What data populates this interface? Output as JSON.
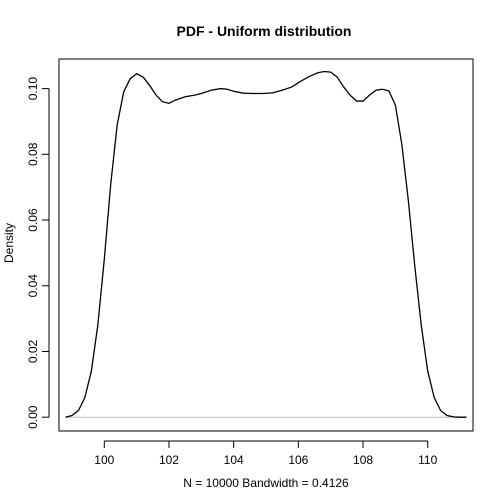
{
  "chart_data": {
    "type": "line",
    "title": "PDF - Uniform distribution",
    "xlabel": "N = 10000   Bandwidth = 0.4126",
    "ylabel": "Density",
    "xlim": [
      98.6,
      111.4
    ],
    "ylim": [
      -0.0042,
      0.109
    ],
    "x_ticks": [
      100,
      102,
      104,
      106,
      108,
      110
    ],
    "x_tick_labels": [
      "100",
      "102",
      "104",
      "106",
      "108",
      "110"
    ],
    "y_ticks": [
      0.0,
      0.02,
      0.04,
      0.06,
      0.08,
      0.1
    ],
    "y_tick_labels": [
      "0.00",
      "0.02",
      "0.04",
      "0.06",
      "0.08",
      "0.10"
    ],
    "zero_line": true,
    "zero_line_color": "#bebebe",
    "line_color": "#000000",
    "grid": false,
    "series": [
      {
        "x": [
          98.8,
          99.0,
          99.2,
          99.4,
          99.6,
          99.8,
          100.0,
          100.2,
          100.4,
          100.6,
          100.8,
          101.0,
          101.2,
          101.4,
          101.6,
          101.8,
          102.0,
          102.2,
          102.5,
          102.8,
          103.0,
          103.3,
          103.6,
          103.8,
          104.0,
          104.3,
          104.6,
          104.9,
          105.2,
          105.5,
          105.8,
          106.0,
          106.3,
          106.6,
          106.8,
          107.0,
          107.2,
          107.4,
          107.6,
          107.8,
          108.0,
          108.2,
          108.4,
          108.6,
          108.8,
          109.0,
          109.2,
          109.4,
          109.6,
          109.8,
          110.0,
          110.2,
          110.4,
          110.6,
          110.8,
          111.0,
          111.2
        ],
        "y": [
          0.0,
          0.0005,
          0.002,
          0.006,
          0.014,
          0.028,
          0.048,
          0.071,
          0.089,
          0.099,
          0.103,
          0.1045,
          0.1035,
          0.101,
          0.098,
          0.096,
          0.0955,
          0.0965,
          0.0975,
          0.098,
          0.0985,
          0.0995,
          0.1,
          0.0998,
          0.0992,
          0.0986,
          0.0985,
          0.0985,
          0.0987,
          0.0995,
          0.1005,
          0.1018,
          0.1035,
          0.1048,
          0.1052,
          0.105,
          0.1035,
          0.1005,
          0.098,
          0.0962,
          0.0962,
          0.098,
          0.0995,
          0.0998,
          0.0993,
          0.095,
          0.083,
          0.066,
          0.046,
          0.028,
          0.014,
          0.006,
          0.002,
          0.0005,
          0.0001,
          0.0,
          0.0
        ]
      }
    ]
  }
}
